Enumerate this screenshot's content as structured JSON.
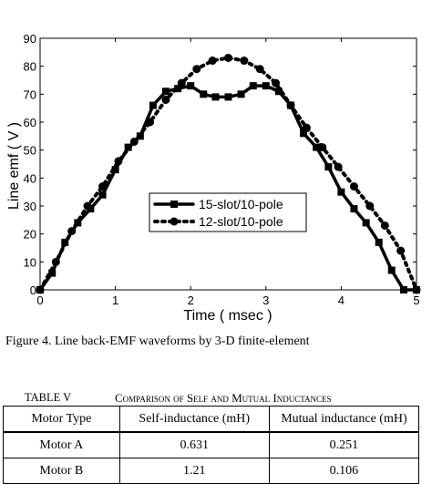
{
  "chart_data": {
    "type": "line",
    "xlabel": "Time ( msec )",
    "ylabel": "Line emf ( V )",
    "xlim": [
      0,
      5
    ],
    "ylim": [
      0,
      90
    ],
    "xticks": [
      0,
      1,
      2,
      3,
      4,
      5
    ],
    "yticks": [
      0,
      10,
      20,
      30,
      40,
      50,
      60,
      70,
      80,
      90
    ],
    "grid": false,
    "legend_position": "center-left",
    "series": [
      {
        "name": "15-slot/10-pole",
        "style": "solid",
        "marker": "square",
        "color": "#000000",
        "x": [
          0,
          0.16,
          0.33,
          0.5,
          0.67,
          0.83,
          1.0,
          1.17,
          1.33,
          1.5,
          1.67,
          1.83,
          2.0,
          2.17,
          2.33,
          2.5,
          2.67,
          2.83,
          3.0,
          3.17,
          3.33,
          3.5,
          3.67,
          3.83,
          4.0,
          4.17,
          4.33,
          4.5,
          4.67,
          4.83,
          5.0
        ],
        "y": [
          0,
          6,
          17,
          24,
          29,
          34,
          43,
          51,
          55,
          66,
          71,
          72,
          73,
          70,
          69,
          69,
          70,
          73,
          73,
          71,
          66,
          56,
          51,
          44,
          35,
          29,
          24,
          17,
          7,
          0,
          0
        ]
      },
      {
        "name": "12-slot/10-pole",
        "style": "dotted",
        "marker": "circle",
        "color": "#000000",
        "x": [
          0,
          0.21,
          0.42,
          0.63,
          0.83,
          1.04,
          1.25,
          1.46,
          1.67,
          1.88,
          2.08,
          2.29,
          2.5,
          2.71,
          2.92,
          3.13,
          3.33,
          3.54,
          3.75,
          3.96,
          4.17,
          4.38,
          4.58,
          4.79,
          5.0
        ],
        "y": [
          0,
          10,
          21,
          30,
          37,
          46,
          53,
          60,
          68,
          74,
          79,
          82,
          83,
          82,
          79,
          74,
          66,
          58,
          51,
          44,
          37,
          30,
          23,
          14,
          0
        ]
      }
    ]
  },
  "figure": {
    "caption": "Figure 4.  Line back-EMF waveforms by 3-D finite-element"
  },
  "table": {
    "number": "TABLE V",
    "title": "Comparison of Self and Mutual Inductances",
    "headers": [
      "Motor Type",
      "Self-inductance (mH)",
      "Mutual inductance (mH)"
    ],
    "rows": [
      [
        "Motor A",
        "0.631",
        "0.251"
      ],
      [
        "Motor B",
        "1.21",
        "0.106"
      ]
    ]
  }
}
